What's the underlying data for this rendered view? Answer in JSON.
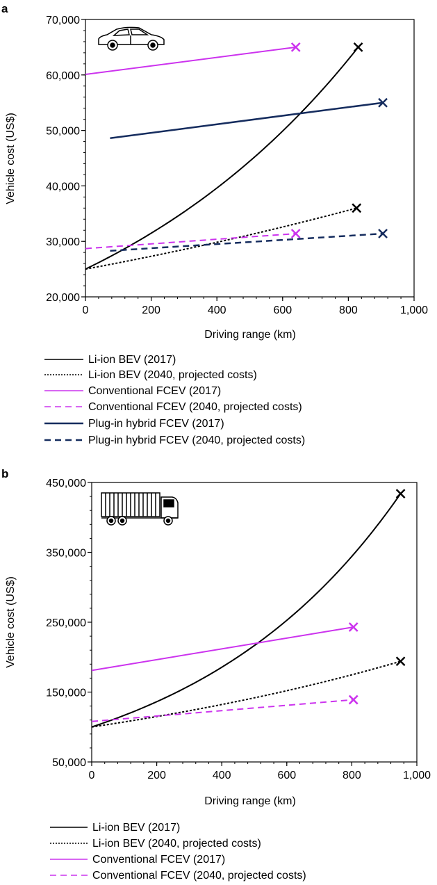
{
  "figure": {
    "colors": {
      "black": "#000000",
      "magenta": "#cc33ee",
      "navy": "#152c5e"
    }
  },
  "chart_data": [
    {
      "panel_label": "a",
      "type": "line",
      "icon": "car-icon",
      "xlabel": "Driving range (km)",
      "ylabel": "Vehicle cost (US$)",
      "xlim": [
        0,
        1000
      ],
      "ylim": [
        20000,
        70000
      ],
      "xticks": [
        0,
        200,
        400,
        600,
        800,
        1000
      ],
      "xtick_labels": [
        "0",
        "200",
        "400",
        "600",
        "800",
        "1,000"
      ],
      "yticks": [
        20000,
        30000,
        40000,
        50000,
        60000,
        70000
      ],
      "ytick_labels": [
        "20,000",
        "30,000",
        "40,000",
        "50,000",
        "60,000",
        "70,000"
      ],
      "series": [
        {
          "name": "Li-ion BEV (2017)",
          "color": "#000000",
          "dash": "solid",
          "width": 2,
          "curve": "exp",
          "x_start": 0,
          "y_start": 25000,
          "x_end": 830,
          "y_end": 65000
        },
        {
          "name": "Li-ion BEV (2040, projected costs)",
          "color": "#000000",
          "dash": "dotted",
          "width": 2,
          "curve": "exp",
          "x_start": 0,
          "y_start": 25000,
          "x_end": 825,
          "y_end": 36000
        },
        {
          "name": "Conventional FCEV (2017)",
          "color": "#cc33ee",
          "dash": "solid",
          "width": 2,
          "curve": "linear",
          "x_start": 0,
          "y_start": 60100,
          "x_end": 640,
          "y_end": 65000
        },
        {
          "name": "Conventional FCEV (2040, projected costs)",
          "color": "#cc33ee",
          "dash": "dashed",
          "width": 2,
          "curve": "linear",
          "x_start": 0,
          "y_start": 28700,
          "x_end": 640,
          "y_end": 31400
        },
        {
          "name": "Plug-in hybrid FCEV (2017)",
          "color": "#152c5e",
          "dash": "solid",
          "width": 2.5,
          "curve": "linear",
          "x_start": 75,
          "y_start": 48600,
          "x_end": 905,
          "y_end": 55000
        },
        {
          "name": "Plug-in hybrid FCEV (2040, projected costs)",
          "color": "#152c5e",
          "dash": "dashed",
          "width": 2.5,
          "curve": "linear",
          "x_start": 75,
          "y_start": 28300,
          "x_end": 905,
          "y_end": 31400
        }
      ]
    },
    {
      "panel_label": "b",
      "type": "line",
      "icon": "truck-icon",
      "xlabel": "Driving range (km)",
      "ylabel": "Vehicle cost (US$)",
      "xlim": [
        0,
        1000
      ],
      "ylim": [
        50000,
        450000
      ],
      "xticks": [
        0,
        200,
        400,
        600,
        800,
        1000
      ],
      "xtick_labels": [
        "0",
        "200",
        "400",
        "600",
        "800",
        "1,000"
      ],
      "yticks": [
        50000,
        150000,
        250000,
        350000,
        450000
      ],
      "ytick_labels": [
        "50,000",
        "150,000",
        "250,000",
        "350,000",
        "450,000"
      ],
      "series": [
        {
          "name": "Li-ion BEV (2017)",
          "color": "#000000",
          "dash": "solid",
          "width": 2,
          "curve": "exp",
          "x_start": 0,
          "y_start": 100000,
          "x_end": 950,
          "y_end": 434000
        },
        {
          "name": "Li-ion BEV (2040, projected costs)",
          "color": "#000000",
          "dash": "dotted",
          "width": 2,
          "curve": "exp",
          "x_start": 0,
          "y_start": 100000,
          "x_end": 950,
          "y_end": 194000
        },
        {
          "name": "Conventional FCEV (2017)",
          "color": "#cc33ee",
          "dash": "solid",
          "width": 2,
          "curve": "linear",
          "x_start": 0,
          "y_start": 181000,
          "x_end": 805,
          "y_end": 243000
        },
        {
          "name": "Conventional FCEV (2040, projected costs)",
          "color": "#cc33ee",
          "dash": "dashed",
          "width": 2,
          "curve": "linear",
          "x_start": 0,
          "y_start": 108000,
          "x_end": 805,
          "y_end": 139000
        }
      ]
    }
  ]
}
